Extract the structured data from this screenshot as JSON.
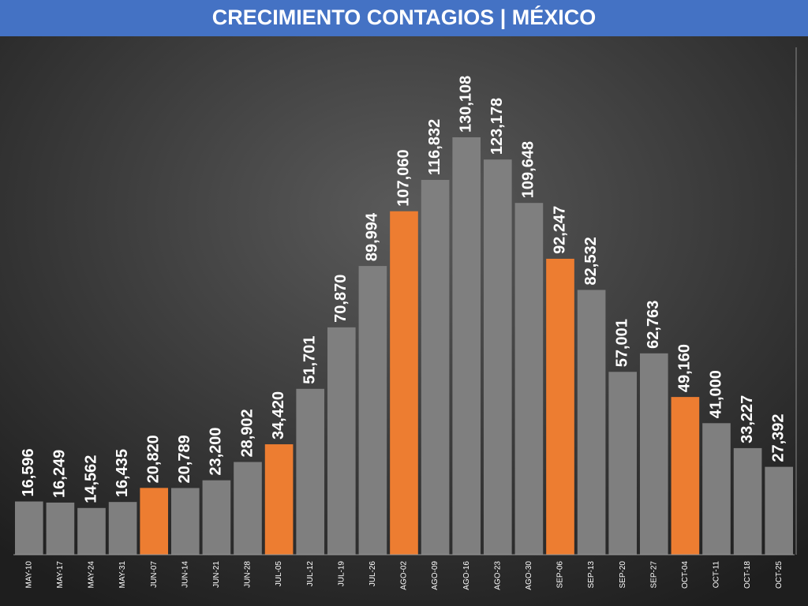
{
  "chart_data": {
    "type": "bar",
    "title": "CRECIMIENTO CONTAGIOS | MÉXICO",
    "categories": [
      "MAY-10",
      "MAY-17",
      "MAY-24",
      "MAY-31",
      "JUN-07",
      "JUN-14",
      "JUN-21",
      "JUN-28",
      "JUL-05",
      "JUL-12",
      "JUL-19",
      "JUL-26",
      "AGO-02",
      "AGO-09",
      "AGO-16",
      "AGO-23",
      "AGO-30",
      "SEP-06",
      "SEP-13",
      "SEP-20",
      "SEP-27",
      "OCT-04",
      "OCT-11",
      "OCT-18",
      "OCT-25"
    ],
    "values": [
      16596,
      16249,
      14562,
      16435,
      20820,
      20789,
      23200,
      28902,
      34420,
      51701,
      70870,
      89994,
      107060,
      116832,
      130108,
      123178,
      109648,
      92247,
      82532,
      57001,
      62763,
      49160,
      41000,
      33227,
      27392
    ],
    "value_labels": [
      "16,596",
      "16,249",
      "14,562",
      "16,435",
      "20,820",
      "20,789",
      "23,200",
      "28,902",
      "34,420",
      "51,701",
      "70,870",
      "89,994",
      "107,060",
      "116,832",
      "130,108",
      "123,178",
      "109,648",
      "92,247",
      "82,532",
      "57,001",
      "62,763",
      "49,160",
      "41,000",
      "33,227",
      "27,392"
    ],
    "colors": [
      "#7f7f7f",
      "#7f7f7f",
      "#7f7f7f",
      "#7f7f7f",
      "#ed7d31",
      "#7f7f7f",
      "#7f7f7f",
      "#7f7f7f",
      "#ed7d31",
      "#7f7f7f",
      "#7f7f7f",
      "#7f7f7f",
      "#ed7d31",
      "#7f7f7f",
      "#7f7f7f",
      "#7f7f7f",
      "#7f7f7f",
      "#ed7d31",
      "#7f7f7f",
      "#7f7f7f",
      "#7f7f7f",
      "#ed7d31",
      "#7f7f7f",
      "#7f7f7f",
      "#7f7f7f"
    ]
  }
}
